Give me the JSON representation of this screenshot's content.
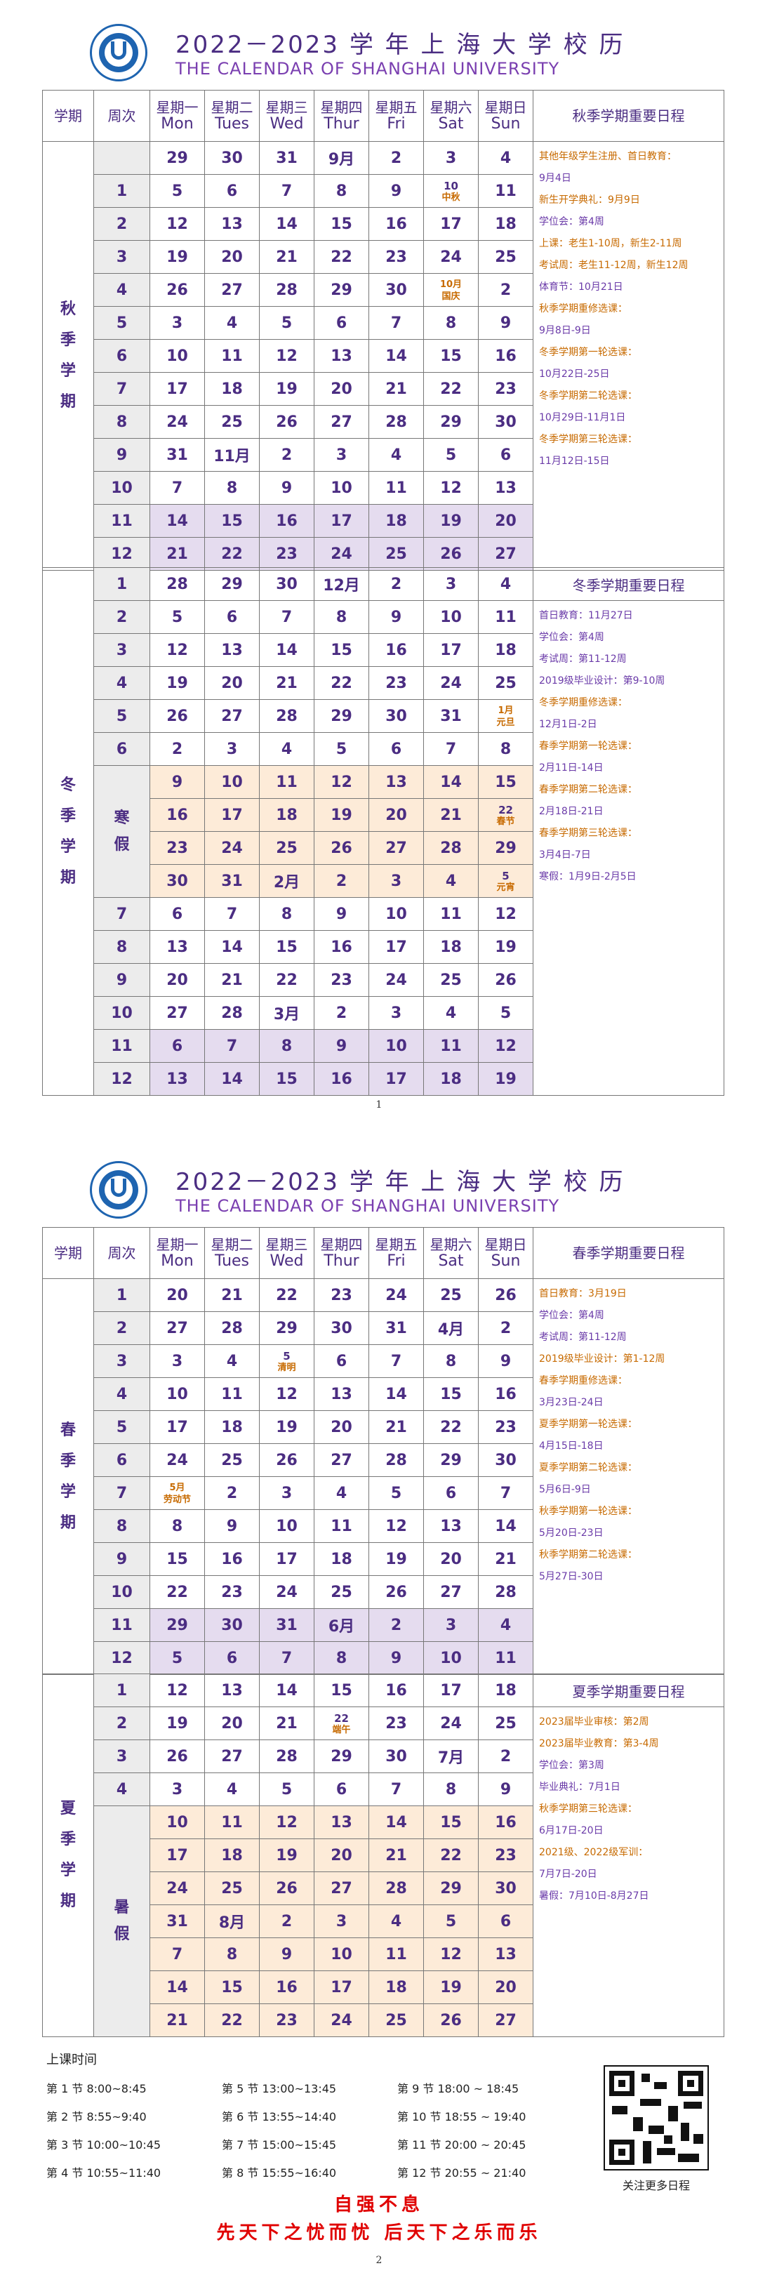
{
  "header": {
    "title_cn": "2022－2023 学 年 上 海 大 学 校 历",
    "title_en": "THE CALENDAR OF SHANGHAI UNIVERSITY"
  },
  "columns": {
    "term": "学期",
    "week": "周次",
    "days": [
      {
        "cn": "星期一",
        "en": "Mon"
      },
      {
        "cn": "星期二",
        "en": "Tues"
      },
      {
        "cn": "星期三",
        "en": "Wed"
      },
      {
        "cn": "星期四",
        "en": "Thur"
      },
      {
        "cn": "星期五",
        "en": "Fri"
      },
      {
        "cn": "星期六",
        "en": "Sat"
      },
      {
        "cn": "星期日",
        "en": "Sun"
      }
    ]
  },
  "colors": {
    "lavender": "#e5dcef",
    "peach": "#fdebd8",
    "purple": "#4b2d82",
    "orange": "#c76a00",
    "red": "#e00000"
  },
  "terms": [
    {
      "name": "秋季学期",
      "notes_title": "秋季学期重要日程",
      "notes": [
        {
          "text": "其他年级学生注册、首日教育：",
          "c": "or"
        },
        {
          "text": "9月4日",
          "c": "pu"
        },
        {
          "text": "新生开学典礼：9月9日",
          "c": "or"
        },
        {
          "text": "学位会：第4周",
          "c": "pu"
        },
        {
          "text": "上课：老生1-10周，新生2-11周",
          "c": "or"
        },
        {
          "text": "考试周：老生11-12周，新生12周",
          "c": "or"
        },
        {
          "text": "体育节：10月21日",
          "c": "pu"
        },
        {
          "text": "秋季学期重修选课：",
          "c": "or"
        },
        {
          "text": "9月8日-9日",
          "c": "pu"
        },
        {
          "text": "冬季学期第一轮选课：",
          "c": "or"
        },
        {
          "text": "10月22日-25日",
          "c": "pu"
        },
        {
          "text": "冬季学期第二轮选课：",
          "c": "or"
        },
        {
          "text": " 10月29日-11月1日",
          "c": "pu"
        },
        {
          "text": "冬季学期第三轮选课：",
          "c": "or"
        },
        {
          "text": "11月12日-15日",
          "c": "pu"
        }
      ],
      "rows": [
        {
          "week": "",
          "cells": [
            "29",
            "30",
            "31",
            "9月",
            "2",
            "3",
            "4"
          ]
        },
        {
          "week": "1",
          "cells": [
            "5",
            "6",
            "7",
            "8",
            "9",
            "10|中秋",
            "11"
          ]
        },
        {
          "week": "2",
          "cells": [
            "12",
            "13",
            "14",
            "15",
            "16",
            "17",
            "18"
          ]
        },
        {
          "week": "3",
          "cells": [
            "19",
            "20",
            "21",
            "22",
            "23",
            "24",
            "25"
          ]
        },
        {
          "week": "4",
          "cells": [
            "26",
            "27",
            "28",
            "29",
            "30",
            "10月|国庆",
            "2"
          ]
        },
        {
          "week": "5",
          "cells": [
            "3",
            "4",
            "5",
            "6",
            "7",
            "8",
            "9"
          ]
        },
        {
          "week": "6",
          "cells": [
            "10",
            "11",
            "12",
            "13",
            "14",
            "15",
            "16"
          ]
        },
        {
          "week": "7",
          "cells": [
            "17",
            "18",
            "19",
            "20",
            "21",
            "22",
            "23"
          ]
        },
        {
          "week": "8",
          "cells": [
            "24",
            "25",
            "26",
            "27",
            "28",
            "29",
            "30"
          ]
        },
        {
          "week": "9",
          "cells": [
            "31",
            "11月",
            "2",
            "3",
            "4",
            "5",
            "6"
          ]
        },
        {
          "week": "10",
          "cells": [
            "7",
            "8",
            "9",
            "10",
            "11",
            "12",
            "13"
          ]
        },
        {
          "week": "11",
          "cells": [
            "14",
            "15",
            "16",
            "17",
            "18",
            "19",
            "20"
          ],
          "bg": "lav"
        },
        {
          "week": "12",
          "cells": [
            "21",
            "22",
            "23",
            "24",
            "25",
            "26",
            "27"
          ],
          "bg": "lav"
        }
      ]
    },
    {
      "name": "冬季学期",
      "notes_title": "冬季学期重要日程",
      "notes": [
        {
          "text": "首日教育：11月27日",
          "c": "pu"
        },
        {
          "text": "学位会：第4周",
          "c": "pu"
        },
        {
          "text": "考试周：第11-12周",
          "c": "pu"
        },
        {
          "text": "2019级毕业设计：第9-10周",
          "c": "pu"
        },
        {
          "text": "冬季学期重修选课：",
          "c": "or"
        },
        {
          "text": "12月1日-2日",
          "c": "pu"
        },
        {
          "text": "春季学期第一轮选课：",
          "c": "or"
        },
        {
          "text": " 2月11日-14日",
          "c": "pu"
        },
        {
          "text": "春季学期第二轮选课：",
          "c": "or"
        },
        {
          "text": " 2月18日-21日",
          "c": "pu"
        },
        {
          "text": "春季学期第三轮选课：",
          "c": "or"
        },
        {
          "text": "3月4日-7日",
          "c": "pu"
        },
        {
          "text": "寒假：1月9日-2月5日",
          "c": "pu"
        }
      ],
      "holiday": "寒假",
      "rows": [
        {
          "week": "1",
          "cells": [
            "28",
            "29",
            "30",
            "12月",
            "2",
            "3",
            "4"
          ]
        },
        {
          "week": "2",
          "cells": [
            "5",
            "6",
            "7",
            "8",
            "9",
            "10",
            "11"
          ]
        },
        {
          "week": "3",
          "cells": [
            "12",
            "13",
            "14",
            "15",
            "16",
            "17",
            "18"
          ]
        },
        {
          "week": "4",
          "cells": [
            "19",
            "20",
            "21",
            "22",
            "23",
            "24",
            "25"
          ]
        },
        {
          "week": "5",
          "cells": [
            "26",
            "27",
            "28",
            "29",
            "30",
            "31",
            "1月|元旦"
          ]
        },
        {
          "week": "6",
          "cells": [
            "2",
            "3",
            "4",
            "5",
            "6",
            "7",
            "8"
          ]
        },
        {
          "week": "",
          "cells": [
            "9",
            "10",
            "11",
            "12",
            "13",
            "14",
            "15"
          ],
          "bg": "pea",
          "hol": true
        },
        {
          "week": "",
          "cells": [
            "16",
            "17",
            "18",
            "19",
            "20",
            "21",
            "22|春节"
          ],
          "bg": "pea",
          "hol": true
        },
        {
          "week": "",
          "cells": [
            "23",
            "24",
            "25",
            "26",
            "27",
            "28",
            "29"
          ],
          "bg": "pea",
          "hol": true
        },
        {
          "week": "",
          "cells": [
            "30",
            "31",
            "2月",
            "2",
            "3",
            "4",
            "5|元宵"
          ],
          "bg": "pea",
          "hol": true
        },
        {
          "week": "7",
          "cells": [
            "6",
            "7",
            "8",
            "9",
            "10",
            "11",
            "12"
          ]
        },
        {
          "week": "8",
          "cells": [
            "13",
            "14",
            "15",
            "16",
            "17",
            "18",
            "19"
          ]
        },
        {
          "week": "9",
          "cells": [
            "20",
            "21",
            "22",
            "23",
            "24",
            "25",
            "26"
          ]
        },
        {
          "week": "10",
          "cells": [
            "27",
            "28",
            "3月",
            "2",
            "3",
            "4",
            "5"
          ]
        },
        {
          "week": "11",
          "cells": [
            "6",
            "7",
            "8",
            "9",
            "10",
            "11",
            "12"
          ],
          "bg": "lav"
        },
        {
          "week": "12",
          "cells": [
            "13",
            "14",
            "15",
            "16",
            "17",
            "18",
            "19"
          ],
          "bg": "lav"
        }
      ]
    },
    {
      "name": "春季学期",
      "notes_title": "春季学期重要日程",
      "notes": [
        {
          "text": "首日教育：3月19日",
          "c": "or"
        },
        {
          "text": "学位会：第4周",
          "c": "pu"
        },
        {
          "text": "考试周：第11-12周",
          "c": "pu"
        },
        {
          "text": "2019级毕业设计：第1-12周",
          "c": "or"
        },
        {
          "text": "春季学期重修选课：",
          "c": "or"
        },
        {
          "text": "3月23日-24日",
          "c": "pu"
        },
        {
          "text": "夏季学期第一轮选课：",
          "c": "or"
        },
        {
          "text": "4月15日-18日",
          "c": "pu"
        },
        {
          "text": "夏季学期第二轮选课：",
          "c": "or"
        },
        {
          "text": "5月6日-9日",
          "c": "pu"
        },
        {
          "text": "秋季学期第一轮选课：",
          "c": "or"
        },
        {
          "text": "5月20日-23日",
          "c": "pu"
        },
        {
          "text": "秋季学期第二轮选课：",
          "c": "or"
        },
        {
          "text": "5月27日-30日",
          "c": "pu"
        }
      ],
      "rows": [
        {
          "week": "1",
          "cells": [
            "20",
            "21",
            "22",
            "23",
            "24",
            "25",
            "26"
          ]
        },
        {
          "week": "2",
          "cells": [
            "27",
            "28",
            "29",
            "30",
            "31",
            "4月",
            "2"
          ]
        },
        {
          "week": "3",
          "cells": [
            "3",
            "4",
            "5|清明",
            "6",
            "7",
            "8",
            "9"
          ]
        },
        {
          "week": "4",
          "cells": [
            "10",
            "11",
            "12",
            "13",
            "14",
            "15",
            "16"
          ]
        },
        {
          "week": "5",
          "cells": [
            "17",
            "18",
            "19",
            "20",
            "21",
            "22",
            "23"
          ]
        },
        {
          "week": "6",
          "cells": [
            "24",
            "25",
            "26",
            "27",
            "28",
            "29",
            "30"
          ]
        },
        {
          "week": "7",
          "cells": [
            "5月|劳动节",
            "2",
            "3",
            "4",
            "5",
            "6",
            "7"
          ]
        },
        {
          "week": "8",
          "cells": [
            "8",
            "9",
            "10",
            "11",
            "12",
            "13",
            "14"
          ]
        },
        {
          "week": "9",
          "cells": [
            "15",
            "16",
            "17",
            "18",
            "19",
            "20",
            "21"
          ]
        },
        {
          "week": "10",
          "cells": [
            "22",
            "23",
            "24",
            "25",
            "26",
            "27",
            "28"
          ]
        },
        {
          "week": "11",
          "cells": [
            "29",
            "30",
            "31",
            "6月",
            "2",
            "3",
            "4"
          ],
          "bg": "lav"
        },
        {
          "week": "12",
          "cells": [
            "5",
            "6",
            "7",
            "8",
            "9",
            "10",
            "11"
          ],
          "bg": "lav"
        }
      ]
    },
    {
      "name": "夏季学期",
      "notes_title": "夏季学期重要日程",
      "notes": [
        {
          "text": "2023届毕业审核：第2周",
          "c": "or"
        },
        {
          "text": "2023届毕业教育：第3-4周",
          "c": "or"
        },
        {
          "text": "学位会：第3周",
          "c": "pu"
        },
        {
          "text": "毕业典礼：7月1日",
          "c": "pu"
        },
        {
          "text": "秋季学期第三轮选课：",
          "c": "or"
        },
        {
          "text": "6月17日-20日",
          "c": "pu"
        },
        {
          "text": "2021级、2022级军训：",
          "c": "or"
        },
        {
          "text": "7月7日-20日",
          "c": "pu"
        },
        {
          "text": "暑假：7月10日-8月27日",
          "c": "pu"
        }
      ],
      "holiday": "暑假",
      "rows": [
        {
          "week": "1",
          "cells": [
            "12",
            "13",
            "14",
            "15",
            "16",
            "17",
            "18"
          ]
        },
        {
          "week": "2",
          "cells": [
            "19",
            "20",
            "21",
            "22|端午",
            "23",
            "24",
            "25"
          ]
        },
        {
          "week": "3",
          "cells": [
            "26",
            "27",
            "28",
            "29",
            "30",
            "7月",
            "2"
          ]
        },
        {
          "week": "4",
          "cells": [
            "3",
            "4",
            "5",
            "6",
            "7",
            "8",
            "9"
          ]
        },
        {
          "week": "",
          "cells": [
            "10",
            "11",
            "12",
            "13",
            "14",
            "15",
            "16"
          ],
          "bg": "pea",
          "hol": true
        },
        {
          "week": "",
          "cells": [
            "17",
            "18",
            "19",
            "20",
            "21",
            "22",
            "23"
          ],
          "bg": "pea",
          "hol": true
        },
        {
          "week": "",
          "cells": [
            "24",
            "25",
            "26",
            "27",
            "28",
            "29",
            "30"
          ],
          "bg": "pea",
          "hol": true
        },
        {
          "week": "",
          "cells": [
            "31",
            "8月",
            "2",
            "3",
            "4",
            "5",
            "6"
          ],
          "bg": "pea",
          "hol": true
        },
        {
          "week": "",
          "cells": [
            "7",
            "8",
            "9",
            "10",
            "11",
            "12",
            "13"
          ],
          "bg": "pea",
          "hol": true
        },
        {
          "week": "",
          "cells": [
            "14",
            "15",
            "16",
            "17",
            "18",
            "19",
            "20"
          ],
          "bg": "pea",
          "hol": true
        },
        {
          "week": "",
          "cells": [
            "21",
            "22",
            "23",
            "24",
            "25",
            "26",
            "27"
          ],
          "bg": "pea",
          "hol": true
        }
      ]
    }
  ],
  "class_times": {
    "title": "上课时间",
    "items": [
      "第 1 节  8:00~8:45",
      "第 5 节  13:00~13:45",
      "第 9 节  18:00 ~ 18:45",
      "第 2 节  8:55~9:40",
      "第 6 节  13:55~14:40",
      "第 10 节  18:55 ~ 19:40",
      "第 3 节  10:00~10:45",
      "第 7 节  15:00~15:45",
      "第 11 节  20:00 ~ 20:45",
      "第 4 节  10:55~11:40",
      "第 8 节  15:55~16:40",
      "第 12 节  20:55 ~ 21:40"
    ]
  },
  "qr_caption": "关注更多日程",
  "motto": {
    "line1": "自强不息",
    "line2": "先天下之忧而忧  后天下之乐而乐"
  },
  "page_numbers": {
    "p1": "1",
    "p2": "2"
  }
}
